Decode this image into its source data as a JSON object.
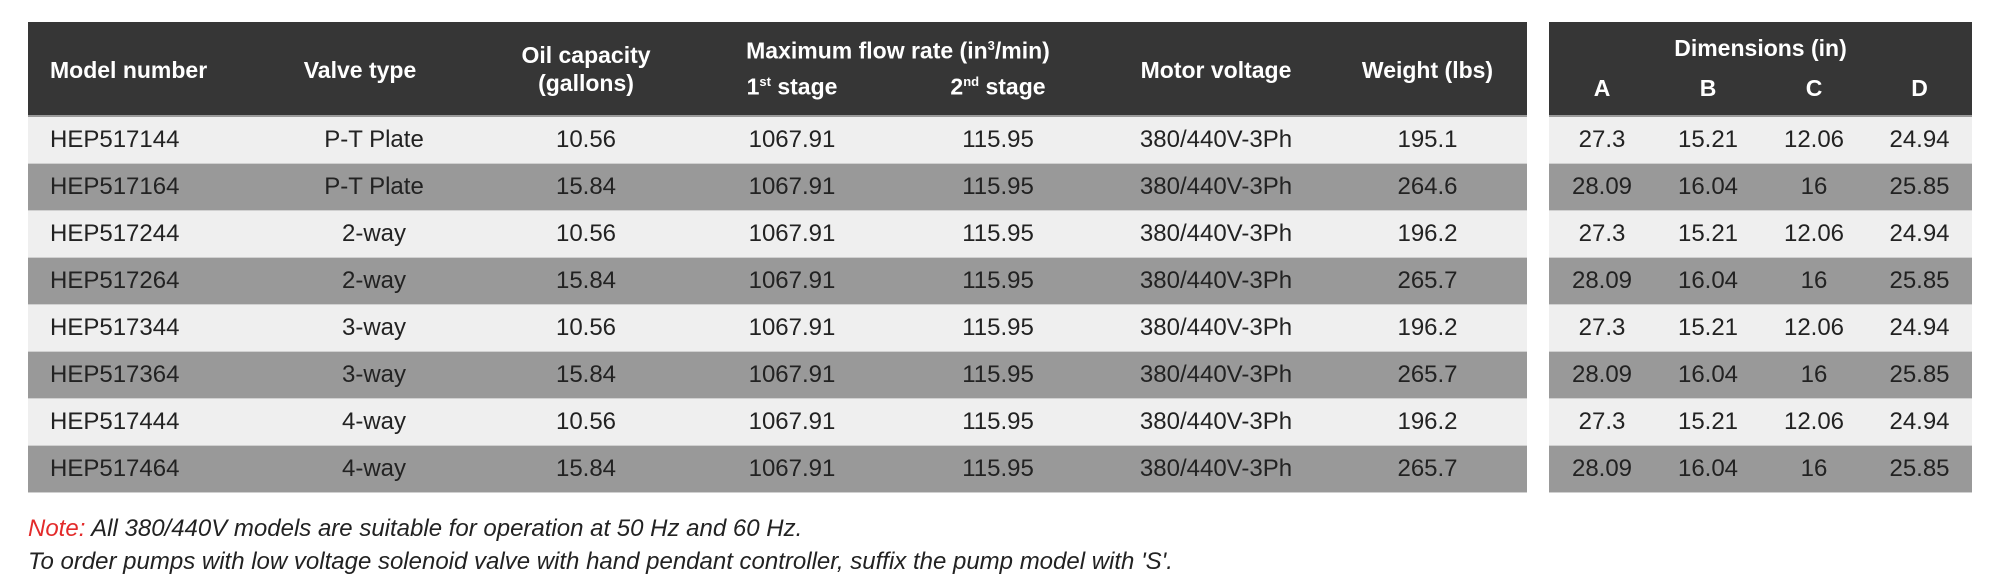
{
  "header": {
    "model": "Model number",
    "valve": "Valve type",
    "oil_line1": "Oil capacity",
    "oil_line2": "(gallons)",
    "flow_title": "Maximum flow rate (in",
    "flow_sup": "3",
    "flow_title_end": "/min)",
    "stage1": "1",
    "stage1_sup": "st",
    "stage1_label": " stage",
    "stage2": "2",
    "stage2_sup": "nd",
    "stage2_label": " stage",
    "motor": "Motor voltage",
    "weight": "Weight (lbs)"
  },
  "dims_header": {
    "title": "Dimensions (in)",
    "cols": [
      "A",
      "B",
      "C",
      "D"
    ]
  },
  "rows": [
    {
      "model": "HEP517144",
      "valve": "P-T Plate",
      "oil": "10.56",
      "stage1": "1067.91",
      "stage2": "115.95",
      "motor": "380/440V-3Ph",
      "weight": "195.1",
      "dims": [
        "27.3",
        "15.21",
        "12.06",
        "24.94"
      ]
    },
    {
      "model": "HEP517164",
      "valve": "P-T Plate",
      "oil": "15.84",
      "stage1": "1067.91",
      "stage2": "115.95",
      "motor": "380/440V-3Ph",
      "weight": "264.6",
      "dims": [
        "28.09",
        "16.04",
        "16",
        "25.85"
      ]
    },
    {
      "model": "HEP517244",
      "valve": "2-way",
      "oil": "10.56",
      "stage1": "1067.91",
      "stage2": "115.95",
      "motor": "380/440V-3Ph",
      "weight": "196.2",
      "dims": [
        "27.3",
        "15.21",
        "12.06",
        "24.94"
      ]
    },
    {
      "model": "HEP517264",
      "valve": "2-way",
      "oil": "15.84",
      "stage1": "1067.91",
      "stage2": "115.95",
      "motor": "380/440V-3Ph",
      "weight": "265.7",
      "dims": [
        "28.09",
        "16.04",
        "16",
        "25.85"
      ]
    },
    {
      "model": "HEP517344",
      "valve": "3-way",
      "oil": "10.56",
      "stage1": "1067.91",
      "stage2": "115.95",
      "motor": "380/440V-3Ph",
      "weight": "196.2",
      "dims": [
        "27.3",
        "15.21",
        "12.06",
        "24.94"
      ]
    },
    {
      "model": "HEP517364",
      "valve": "3-way",
      "oil": "15.84",
      "stage1": "1067.91",
      "stage2": "115.95",
      "motor": "380/440V-3Ph",
      "weight": "265.7",
      "dims": [
        "28.09",
        "16.04",
        "16",
        "25.85"
      ]
    },
    {
      "model": "HEP517444",
      "valve": "4-way",
      "oil": "10.56",
      "stage1": "1067.91",
      "stage2": "115.95",
      "motor": "380/440V-3Ph",
      "weight": "196.2",
      "dims": [
        "27.3",
        "15.21",
        "12.06",
        "24.94"
      ]
    },
    {
      "model": "HEP517464",
      "valve": "4-way",
      "oil": "15.84",
      "stage1": "1067.91",
      "stage2": "115.95",
      "motor": "380/440V-3Ph",
      "weight": "265.7",
      "dims": [
        "28.09",
        "16.04",
        "16",
        "25.85"
      ]
    }
  ],
  "notes": {
    "label": "Note:",
    "line1": " All 380/440V models are suitable for operation at 50 Hz and 60 Hz.",
    "line2": "To order pumps with low voltage solenoid valve with hand pendant controller, suffix the pump model with 'S'."
  },
  "colors": {
    "header_bg": "#363636",
    "row_light": "#efefef",
    "row_dark": "#999999",
    "note_label": "#e32b2b"
  }
}
